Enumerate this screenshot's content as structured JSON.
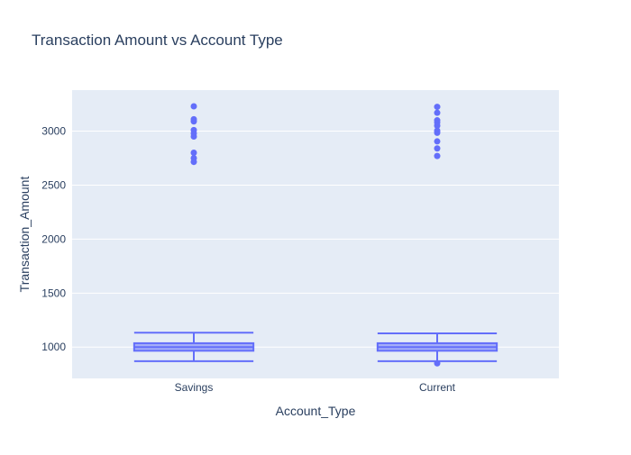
{
  "chart_data": {
    "type": "box",
    "title": "Transaction Amount vs Account Type",
    "xlabel": "Account_Type",
    "ylabel": "Transaction_Amount",
    "categories": [
      "Savings",
      "Current"
    ],
    "yticks": [
      1000,
      1500,
      2000,
      2500,
      3000
    ],
    "ytick_labels": [
      "1000",
      "1500",
      "2000",
      "2500",
      "3000"
    ],
    "ylim": [
      710,
      3380
    ],
    "grid": true,
    "legend": "none",
    "colors": {
      "box": "#636efa",
      "plot_bg": "#e5ecf6",
      "grid": "#ffffff",
      "text": "#2a3f5f"
    },
    "boxes": [
      {
        "category": "Savings",
        "min": 870,
        "q1": 966,
        "median": 1000,
        "q3": 1036,
        "max": 1133,
        "outliers": [
          2715,
          2750,
          2800,
          2950,
          2980,
          3010,
          3090,
          3110,
          3230
        ]
      },
      {
        "category": "Current",
        "min": 870,
        "q1": 966,
        "median": 1000,
        "q3": 1036,
        "max": 1127,
        "outliers": [
          850,
          2770,
          2840,
          2905,
          2985,
          3005,
          3050,
          3080,
          3100,
          3170,
          3225
        ]
      }
    ]
  }
}
